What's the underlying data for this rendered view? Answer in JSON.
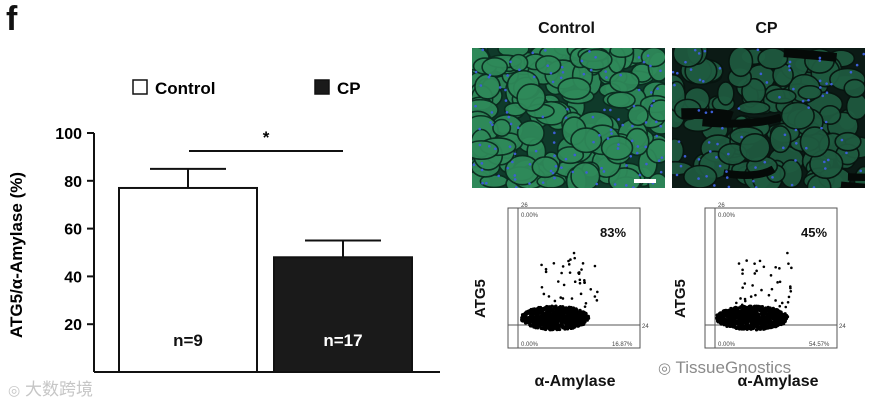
{
  "panel_letter": "f",
  "legend": {
    "items": [
      {
        "label": "Control",
        "color": "#ffffff"
      },
      {
        "label": "CP",
        "color": "#1a1a1a"
      }
    ]
  },
  "chart_data": {
    "type": "bar",
    "categories": [
      "Control",
      "CP"
    ],
    "values": [
      77,
      48
    ],
    "errors": [
      8,
      7
    ],
    "bar_colors": [
      "#ffffff",
      "#1a1a1a"
    ],
    "bar_labels": [
      "n=9",
      "n=17"
    ],
    "ylabel": "ATG5/α-Amylase (%)",
    "ylim": [
      0,
      100
    ],
    "yticks": [
      20,
      40,
      60,
      80,
      100
    ],
    "significance": "*",
    "grid": false
  },
  "micrographs": {
    "titles": [
      "Control",
      "CP"
    ]
  },
  "flow": {
    "plots": [
      {
        "percent": "83%",
        "ylabel": "ATG5",
        "xlabel": "α-Amylase",
        "corner_tl": "0.00%",
        "corner_bl": "0.00%",
        "corner_br": "16.87%",
        "y_top": "26",
        "y_gate": "24"
      },
      {
        "percent": "45%",
        "ylabel": "ATG5",
        "xlabel": "α-Amylase",
        "corner_tl": "0.00%",
        "corner_bl": "0.00%",
        "corner_br": "54.57%",
        "y_top": "26",
        "y_gate": "24"
      }
    ]
  },
  "watermarks": {
    "left": "大数跨境",
    "right": "TissueGnostics"
  }
}
